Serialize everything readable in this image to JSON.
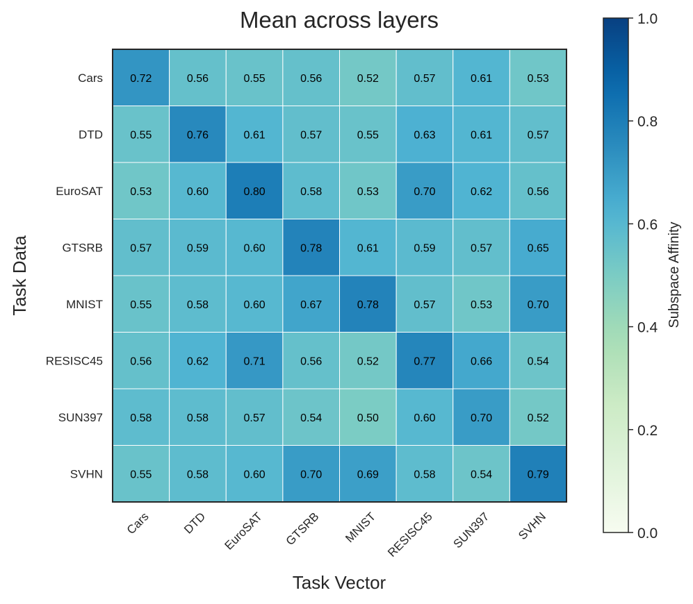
{
  "chart_data": {
    "type": "heatmap",
    "title": "Mean across layers",
    "xlabel": "Task Vector",
    "ylabel": "Task Data",
    "x_categories": [
      "Cars",
      "DTD",
      "EuroSAT",
      "GTSRB",
      "MNIST",
      "RESISC45",
      "SUN397",
      "SVHN"
    ],
    "y_categories": [
      "Cars",
      "DTD",
      "EuroSAT",
      "GTSRB",
      "MNIST",
      "RESISC45",
      "SUN397",
      "SVHN"
    ],
    "values": [
      [
        0.72,
        0.56,
        0.55,
        0.56,
        0.52,
        0.57,
        0.61,
        0.53
      ],
      [
        0.55,
        0.76,
        0.61,
        0.57,
        0.55,
        0.63,
        0.61,
        0.57
      ],
      [
        0.53,
        0.6,
        0.8,
        0.58,
        0.53,
        0.7,
        0.62,
        0.56
      ],
      [
        0.57,
        0.59,
        0.6,
        0.78,
        0.61,
        0.59,
        0.57,
        0.65
      ],
      [
        0.55,
        0.58,
        0.6,
        0.67,
        0.78,
        0.57,
        0.53,
        0.7
      ],
      [
        0.56,
        0.62,
        0.71,
        0.56,
        0.52,
        0.77,
        0.66,
        0.54
      ],
      [
        0.58,
        0.58,
        0.57,
        0.54,
        0.5,
        0.6,
        0.7,
        0.52
      ],
      [
        0.55,
        0.58,
        0.6,
        0.7,
        0.69,
        0.58,
        0.54,
        0.79
      ]
    ],
    "value_range": [
      0.0,
      1.0
    ],
    "colormap": "GnBu",
    "colorbar": {
      "label": "Subspace Affinity",
      "ticks": [
        0.0,
        0.2,
        0.4,
        0.6,
        0.8,
        1.0
      ],
      "tick_labels": [
        "0.0",
        "0.2",
        "0.4",
        "0.6",
        "0.8",
        "1.0"
      ]
    },
    "grid_color": "#ffffff",
    "frame_color": "#262626"
  }
}
